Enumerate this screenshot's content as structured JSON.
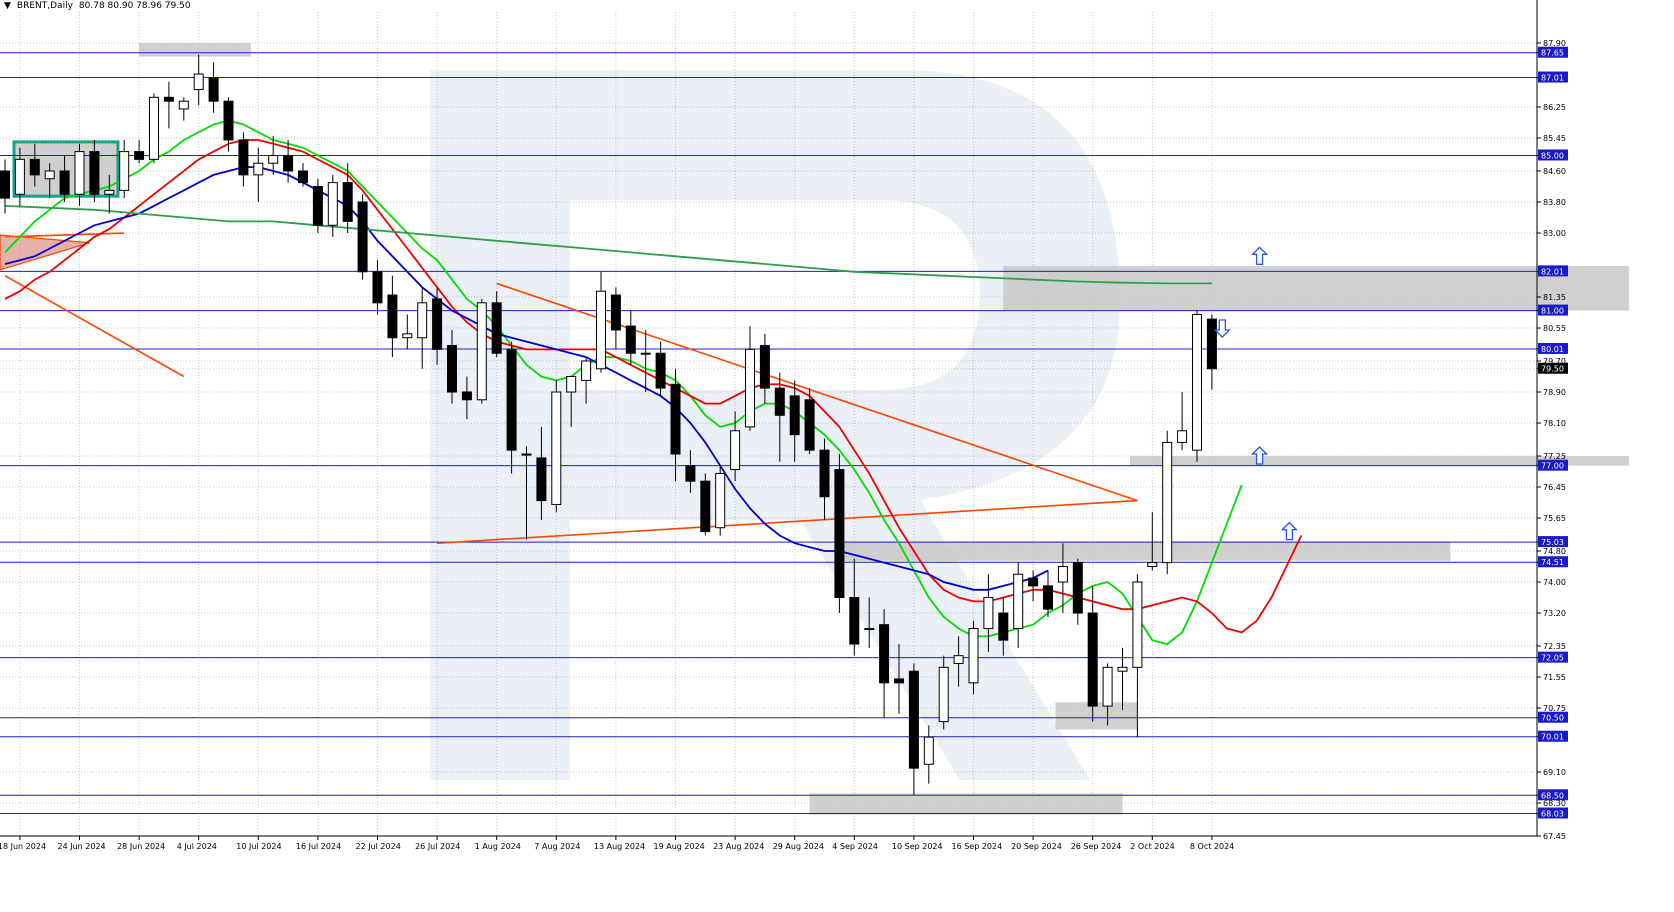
{
  "header": {
    "symbol": "BRENT,Daily",
    "ohlc": "80.78 80.90 78.96 79.50"
  },
  "chart_data": {
    "type": "candlestick",
    "symbol": "BRENT",
    "timeframe": "Daily",
    "ylim": [
      67.45,
      88.7
    ],
    "grid": true,
    "y_ticks": [
      "87.90",
      "87.65",
      "87.01",
      "86.25",
      "85.45",
      "85.00",
      "84.60",
      "83.80",
      "83.00",
      "82.01",
      "81.35",
      "81.00",
      "80.55",
      "80.01",
      "79.70",
      "79.50",
      "78.90",
      "78.10",
      "77.25",
      "77.00",
      "76.45",
      "75.65",
      "75.03",
      "74.80",
      "74.51",
      "74.00",
      "73.20",
      "72.35",
      "72.05",
      "71.55",
      "70.75",
      "70.50",
      "70.01",
      "69.10",
      "68.50",
      "68.30",
      "68.03",
      "67.45"
    ],
    "x_labels": [
      "18 Jun 2024",
      "24 Jun 2024",
      "28 Jun 2024",
      "4 Jul 2024",
      "10 Jul 2024",
      "16 Jul 2024",
      "22 Jul 2024",
      "26 Jul 2024",
      "1 Aug 2024",
      "7 Aug 2024",
      "13 Aug 2024",
      "19 Aug 2024",
      "23 Aug 2024",
      "29 Aug 2024",
      "4 Sep 2024",
      "10 Sep 2024",
      "16 Sep 2024",
      "20 Sep 2024",
      "26 Sep 2024",
      "2 Oct 2024",
      "8 Oct 2024"
    ],
    "levels": [
      {
        "value": 87.65,
        "label": "87.65"
      },
      {
        "value": 87.01,
        "label": "87.01"
      },
      {
        "value": 85.0,
        "label": "85.00"
      },
      {
        "value": 82.01,
        "label": "82.01"
      },
      {
        "value": 81.0,
        "label": "81.00"
      },
      {
        "value": 80.01,
        "label": "80.01"
      },
      {
        "value": 77.0,
        "label": "77.00"
      },
      {
        "value": 75.03,
        "label": "75.03"
      },
      {
        "value": 74.51,
        "label": "74.51"
      },
      {
        "value": 72.05,
        "label": "72.05"
      },
      {
        "value": 70.5,
        "label": "70.50"
      },
      {
        "value": 70.01,
        "label": "70.01"
      },
      {
        "value": 68.5,
        "label": "68.50"
      },
      {
        "value": 68.03,
        "label": "68.03"
      }
    ],
    "last_price": {
      "value": 79.5,
      "label": "79.50"
    },
    "candles": [
      {
        "o": 84.6,
        "h": 84.9,
        "l": 83.5,
        "c": 83.9
      },
      {
        "o": 84.0,
        "h": 85.2,
        "l": 83.7,
        "c": 84.9
      },
      {
        "o": 84.9,
        "h": 85.3,
        "l": 84.2,
        "c": 84.5
      },
      {
        "o": 84.4,
        "h": 84.8,
        "l": 83.9,
        "c": 84.6
      },
      {
        "o": 84.6,
        "h": 85.0,
        "l": 83.8,
        "c": 84.0
      },
      {
        "o": 84.0,
        "h": 85.3,
        "l": 83.7,
        "c": 85.1
      },
      {
        "o": 85.1,
        "h": 85.4,
        "l": 83.8,
        "c": 84.0
      },
      {
        "o": 84.0,
        "h": 84.5,
        "l": 83.5,
        "c": 84.1
      },
      {
        "o": 84.1,
        "h": 85.4,
        "l": 83.9,
        "c": 85.1
      },
      {
        "o": 85.1,
        "h": 85.4,
        "l": 84.8,
        "c": 84.9
      },
      {
        "o": 84.9,
        "h": 86.6,
        "l": 84.8,
        "c": 86.5
      },
      {
        "o": 86.5,
        "h": 86.9,
        "l": 85.7,
        "c": 86.4
      },
      {
        "o": 86.2,
        "h": 86.5,
        "l": 85.9,
        "c": 86.4
      },
      {
        "o": 86.7,
        "h": 87.6,
        "l": 86.3,
        "c": 87.1
      },
      {
        "o": 87.0,
        "h": 87.4,
        "l": 86.1,
        "c": 86.4
      },
      {
        "o": 86.4,
        "h": 86.5,
        "l": 85.1,
        "c": 85.4
      },
      {
        "o": 85.4,
        "h": 85.6,
        "l": 84.2,
        "c": 84.5
      },
      {
        "o": 84.5,
        "h": 85.2,
        "l": 83.8,
        "c": 84.8
      },
      {
        "o": 84.8,
        "h": 85.5,
        "l": 84.5,
        "c": 85.0
      },
      {
        "o": 85.0,
        "h": 85.4,
        "l": 84.3,
        "c": 84.6
      },
      {
        "o": 84.6,
        "h": 84.8,
        "l": 84.2,
        "c": 84.3
      },
      {
        "o": 84.2,
        "h": 84.4,
        "l": 83.0,
        "c": 83.2
      },
      {
        "o": 83.2,
        "h": 84.5,
        "l": 82.9,
        "c": 84.3
      },
      {
        "o": 84.3,
        "h": 84.8,
        "l": 83.0,
        "c": 83.3
      },
      {
        "o": 83.8,
        "h": 84.0,
        "l": 81.8,
        "c": 82.0
      },
      {
        "o": 82.0,
        "h": 82.3,
        "l": 80.9,
        "c": 81.2
      },
      {
        "o": 81.4,
        "h": 81.9,
        "l": 79.8,
        "c": 80.3
      },
      {
        "o": 80.3,
        "h": 80.9,
        "l": 80.0,
        "c": 80.4
      },
      {
        "o": 80.3,
        "h": 81.6,
        "l": 79.5,
        "c": 81.2
      },
      {
        "o": 81.3,
        "h": 81.6,
        "l": 79.6,
        "c": 80.0
      },
      {
        "o": 80.1,
        "h": 80.5,
        "l": 78.6,
        "c": 78.9
      },
      {
        "o": 78.9,
        "h": 79.3,
        "l": 78.2,
        "c": 78.7
      },
      {
        "o": 78.7,
        "h": 81.3,
        "l": 78.6,
        "c": 81.2
      },
      {
        "o": 81.2,
        "h": 81.5,
        "l": 79.8,
        "c": 79.9
      },
      {
        "o": 80.0,
        "h": 80.2,
        "l": 76.8,
        "c": 77.4
      },
      {
        "o": 77.3,
        "h": 77.5,
        "l": 75.1,
        "c": 77.3
      },
      {
        "o": 77.2,
        "h": 78.0,
        "l": 75.6,
        "c": 76.1
      },
      {
        "o": 76.0,
        "h": 79.2,
        "l": 75.8,
        "c": 78.9
      },
      {
        "o": 78.9,
        "h": 79.3,
        "l": 78.0,
        "c": 79.3
      },
      {
        "o": 79.2,
        "h": 79.8,
        "l": 78.6,
        "c": 79.7
      },
      {
        "o": 79.5,
        "h": 82.0,
        "l": 79.4,
        "c": 81.5
      },
      {
        "o": 81.4,
        "h": 81.6,
        "l": 80.0,
        "c": 80.5
      },
      {
        "o": 80.6,
        "h": 81.0,
        "l": 79.6,
        "c": 79.9
      },
      {
        "o": 79.9,
        "h": 80.5,
        "l": 78.9,
        "c": 79.9
      },
      {
        "o": 79.9,
        "h": 80.2,
        "l": 78.8,
        "c": 79.0
      },
      {
        "o": 79.1,
        "h": 79.5,
        "l": 76.6,
        "c": 77.3
      },
      {
        "o": 77.0,
        "h": 77.4,
        "l": 76.3,
        "c": 76.6
      },
      {
        "o": 76.6,
        "h": 76.8,
        "l": 75.2,
        "c": 75.3
      },
      {
        "o": 75.4,
        "h": 77.0,
        "l": 75.2,
        "c": 76.8
      },
      {
        "o": 76.9,
        "h": 78.4,
        "l": 76.6,
        "c": 77.9
      },
      {
        "o": 78.0,
        "h": 80.6,
        "l": 77.9,
        "c": 80.0
      },
      {
        "o": 80.1,
        "h": 80.4,
        "l": 78.6,
        "c": 79.0
      },
      {
        "o": 79.0,
        "h": 79.4,
        "l": 77.1,
        "c": 78.3
      },
      {
        "o": 78.8,
        "h": 79.2,
        "l": 77.1,
        "c": 77.8
      },
      {
        "o": 78.7,
        "h": 79.0,
        "l": 77.3,
        "c": 77.4
      },
      {
        "o": 77.4,
        "h": 77.7,
        "l": 75.6,
        "c": 76.2
      },
      {
        "o": 76.9,
        "h": 77.3,
        "l": 73.2,
        "c": 73.6
      },
      {
        "o": 73.6,
        "h": 74.6,
        "l": 72.1,
        "c": 72.4
      },
      {
        "o": 72.8,
        "h": 73.6,
        "l": 72.3,
        "c": 72.8
      },
      {
        "o": 72.9,
        "h": 73.3,
        "l": 70.5,
        "c": 71.4
      },
      {
        "o": 71.5,
        "h": 72.4,
        "l": 70.6,
        "c": 71.4
      },
      {
        "o": 71.7,
        "h": 71.9,
        "l": 68.5,
        "c": 69.2
      },
      {
        "o": 69.3,
        "h": 70.3,
        "l": 68.8,
        "c": 70.0
      },
      {
        "o": 70.4,
        "h": 72.1,
        "l": 70.2,
        "c": 71.8
      },
      {
        "o": 71.9,
        "h": 72.6,
        "l": 71.3,
        "c": 72.1
      },
      {
        "o": 71.4,
        "h": 73.0,
        "l": 71.1,
        "c": 72.8
      },
      {
        "o": 72.8,
        "h": 74.2,
        "l": 72.2,
        "c": 73.6
      },
      {
        "o": 73.2,
        "h": 73.6,
        "l": 72.1,
        "c": 72.5
      },
      {
        "o": 72.8,
        "h": 74.5,
        "l": 72.3,
        "c": 74.2
      },
      {
        "o": 74.1,
        "h": 74.3,
        "l": 73.5,
        "c": 73.9
      },
      {
        "o": 73.9,
        "h": 74.3,
        "l": 73.1,
        "c": 73.3
      },
      {
        "o": 74.0,
        "h": 75.0,
        "l": 73.2,
        "c": 74.4
      },
      {
        "o": 74.5,
        "h": 74.6,
        "l": 72.9,
        "c": 73.2
      },
      {
        "o": 73.2,
        "h": 73.9,
        "l": 70.4,
        "c": 70.8
      },
      {
        "o": 70.8,
        "h": 71.9,
        "l": 70.3,
        "c": 71.8
      },
      {
        "o": 71.7,
        "h": 72.3,
        "l": 70.7,
        "c": 71.8
      },
      {
        "o": 71.8,
        "h": 74.2,
        "l": 70.0,
        "c": 74.0
      },
      {
        "o": 74.4,
        "h": 75.8,
        "l": 74.3,
        "c": 74.5
      },
      {
        "o": 74.5,
        "h": 77.9,
        "l": 74.2,
        "c": 77.6
      },
      {
        "o": 77.6,
        "h": 78.9,
        "l": 77.4,
        "c": 77.9
      },
      {
        "o": 77.4,
        "h": 81.0,
        "l": 77.1,
        "c": 80.9
      },
      {
        "o": 80.78,
        "h": 80.9,
        "l": 78.96,
        "c": 79.5
      }
    ],
    "series": [
      {
        "color": "#00dd00",
        "values": [
          82.5,
          82.9,
          83.3,
          83.6,
          83.9,
          84.0,
          84.1,
          84.2,
          84.4,
          84.6,
          84.9,
          85.1,
          85.4,
          85.6,
          85.8,
          85.9,
          85.8,
          85.6,
          85.4,
          85.3,
          85.2,
          85.0,
          84.8,
          84.6,
          84.2,
          83.8,
          83.4,
          83.0,
          82.6,
          82.3,
          81.8,
          81.3,
          81.0,
          80.6,
          80.1,
          79.6,
          79.3,
          79.2,
          79.3,
          79.6,
          79.8,
          79.8,
          79.7,
          79.5,
          79.4,
          79.2,
          78.8,
          78.3,
          78.0,
          78.1,
          78.4,
          78.6,
          78.6,
          78.4,
          78.1,
          77.8,
          77.4,
          76.9,
          76.3,
          75.6,
          75.0,
          74.3,
          73.6,
          73.1,
          72.8,
          72.6,
          72.6,
          72.7,
          72.8,
          72.9,
          73.2,
          73.4,
          73.7,
          73.9,
          74.0,
          73.7,
          73.1,
          72.5,
          72.4,
          72.7,
          73.5,
          74.5,
          75.5,
          76.5
        ]
      },
      {
        "color": "#ee0000",
        "values": [
          81.3,
          81.5,
          81.8,
          82.0,
          82.3,
          82.6,
          82.9,
          83.1,
          83.4,
          83.7,
          84.0,
          84.3,
          84.6,
          84.9,
          85.1,
          85.3,
          85.4,
          85.4,
          85.3,
          85.2,
          85.1,
          84.9,
          84.7,
          84.5,
          84.1,
          83.6,
          83.1,
          82.6,
          82.1,
          81.6,
          81.1,
          80.7,
          80.4,
          80.2,
          80.1,
          80.0,
          80.0,
          80.0,
          80.0,
          80.0,
          80.0,
          79.8,
          79.6,
          79.4,
          79.2,
          79.0,
          78.8,
          78.6,
          78.6,
          78.8,
          79.0,
          79.1,
          79.1,
          79.0,
          78.8,
          78.4,
          78.0,
          77.4,
          76.8,
          76.1,
          75.4,
          74.8,
          74.2,
          73.8,
          73.6,
          73.5,
          73.5,
          73.6,
          73.7,
          73.8,
          73.8,
          73.7,
          73.6,
          73.5,
          73.4,
          73.3,
          73.3,
          73.4,
          73.5,
          73.6,
          73.5,
          73.2,
          72.8,
          72.7,
          73.0,
          73.6,
          74.4,
          75.2
        ]
      },
      {
        "color": "#0000cc",
        "values": [
          82.2,
          82.3,
          82.4,
          82.6,
          82.8,
          83.0,
          83.2,
          83.3,
          83.4,
          83.5,
          83.7,
          83.9,
          84.1,
          84.3,
          84.5,
          84.6,
          84.7,
          84.7,
          84.6,
          84.5,
          84.3,
          84.1,
          83.9,
          83.7,
          83.3,
          82.8,
          82.4,
          82.0,
          81.6,
          81.3,
          81.0,
          80.8,
          80.6,
          80.4,
          80.3,
          80.2,
          80.1,
          80.0,
          79.9,
          79.8,
          79.6,
          79.4,
          79.2,
          79.0,
          78.8,
          78.5,
          78.1,
          77.6,
          77.0,
          76.4,
          75.9,
          75.5,
          75.2,
          75.0,
          74.9,
          74.8,
          74.8,
          74.7,
          74.6,
          74.5,
          74.4,
          74.3,
          74.2,
          74.0,
          73.9,
          73.8,
          73.8,
          73.9,
          74.0,
          74.1,
          74.3
        ]
      },
      {
        "color": "#2e9e4e",
        "values": [
          83.7,
          83.65,
          83.6,
          83.5,
          83.4,
          83.3,
          83.3,
          83.2,
          83.1,
          83.0,
          82.9,
          82.8,
          82.7,
          82.6,
          82.5,
          82.4,
          82.3,
          82.2,
          82.1,
          82.0,
          81.95,
          81.9,
          81.85,
          81.8,
          81.75,
          81.72,
          81.7,
          81.7
        ]
      }
    ],
    "trendlines": [
      {
        "color": "#ff4400",
        "points": [
          [
            0,
            82.9
          ],
          [
            8,
            83.0
          ]
        ]
      },
      {
        "color": "#ff4400",
        "points": [
          [
            0,
            81.9
          ],
          [
            12,
            79.3
          ]
        ]
      },
      {
        "color": "#ff4400",
        "points": [
          [
            33,
            81.7
          ],
          [
            76,
            76.1
          ]
        ]
      },
      {
        "color": "#ff4400",
        "points": [
          [
            29,
            75.0
          ],
          [
            76,
            76.1
          ]
        ]
      }
    ],
    "arrows": [
      {
        "direction": "up",
        "price": 82.4
      },
      {
        "direction": "down",
        "price": 80.55
      },
      {
        "direction": "up",
        "price": 77.25
      },
      {
        "direction": "up",
        "price": 75.3
      }
    ]
  }
}
